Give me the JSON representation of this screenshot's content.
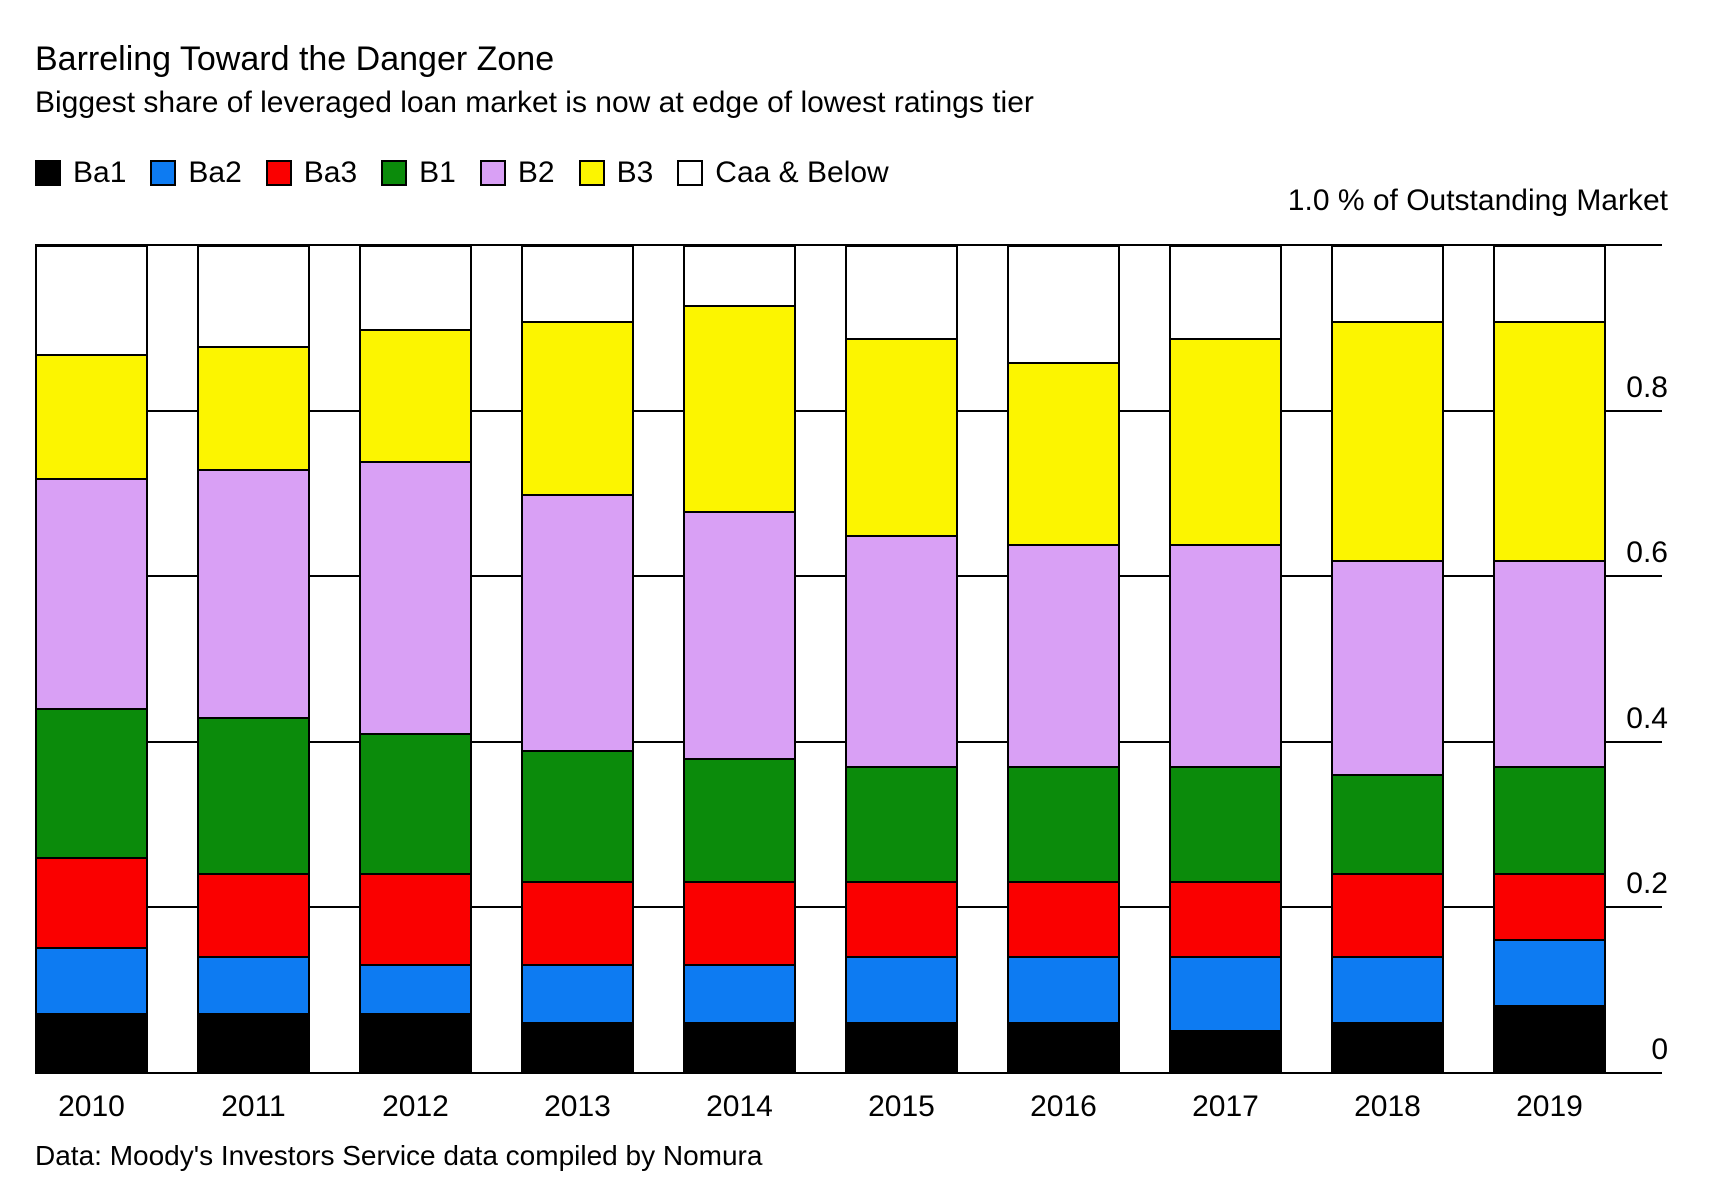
{
  "header": {
    "title": "Barreling Toward the Danger Zone",
    "subtitle": "Biggest share of leveraged loan market is now at edge of lowest ratings tier"
  },
  "axis": {
    "unit_label": "1.0 % of Outstanding Market",
    "right_ticks": [
      {
        "value": 0.8,
        "label": "0.8"
      },
      {
        "value": 0.6,
        "label": "0.6"
      },
      {
        "value": 0.4,
        "label": "0.4"
      },
      {
        "value": 0.2,
        "label": "0.2"
      },
      {
        "value": 0.0,
        "label": "0"
      }
    ]
  },
  "source": "Data: Moody's Investors Service data compiled by Nomura",
  "colors": {
    "Ba1": "#000000",
    "Ba2": "#0d7bf2",
    "Ba3": "#fa0000",
    "B1": "#0b8b0b",
    "B2": "#d9a0f5",
    "B3": "#fcf500",
    "Caa & Below": "#ffffff",
    "border": "#000000",
    "background": "#ffffff"
  },
  "chart_data": {
    "type": "bar",
    "stacked": true,
    "normalized_to_one": true,
    "title": "Barreling Toward the Danger Zone",
    "subtitle": "Biggest share of leveraged loan market is now at edge of lowest ratings tier",
    "ylabel": "% of Outstanding Market",
    "ylim": [
      0,
      1.0
    ],
    "yticks": [
      0,
      0.2,
      0.4,
      0.6,
      0.8,
      1.0
    ],
    "grid": "horizontal",
    "legend_position": "top",
    "categories": [
      "2010",
      "2011",
      "2012",
      "2013",
      "2014",
      "2015",
      "2016",
      "2017",
      "2018",
      "2019"
    ],
    "series": [
      {
        "name": "Ba1",
        "color": "#000000",
        "values": [
          0.07,
          0.07,
          0.07,
          0.06,
          0.06,
          0.06,
          0.06,
          0.05,
          0.06,
          0.08
        ]
      },
      {
        "name": "Ba2",
        "color": "#0d7bf2",
        "values": [
          0.08,
          0.07,
          0.06,
          0.07,
          0.07,
          0.08,
          0.08,
          0.09,
          0.08,
          0.08
        ]
      },
      {
        "name": "Ba3",
        "color": "#fa0000",
        "values": [
          0.11,
          0.1,
          0.11,
          0.1,
          0.1,
          0.09,
          0.09,
          0.09,
          0.1,
          0.08
        ]
      },
      {
        "name": "B1",
        "color": "#0b8b0b",
        "values": [
          0.18,
          0.19,
          0.17,
          0.16,
          0.15,
          0.14,
          0.14,
          0.14,
          0.12,
          0.13
        ]
      },
      {
        "name": "B2",
        "color": "#d9a0f5",
        "values": [
          0.28,
          0.3,
          0.33,
          0.31,
          0.3,
          0.28,
          0.27,
          0.27,
          0.26,
          0.25
        ]
      },
      {
        "name": "B3",
        "color": "#fcf500",
        "values": [
          0.15,
          0.15,
          0.16,
          0.21,
          0.25,
          0.24,
          0.22,
          0.25,
          0.29,
          0.29
        ]
      },
      {
        "name": "Caa & Below",
        "color": "#ffffff",
        "values": [
          0.13,
          0.12,
          0.1,
          0.09,
          0.07,
          0.11,
          0.14,
          0.11,
          0.09,
          0.09
        ]
      }
    ]
  }
}
